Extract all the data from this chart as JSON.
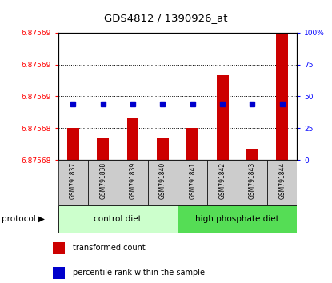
{
  "title": "GDS4812 / 1390926_at",
  "samples": [
    "GSM791837",
    "GSM791838",
    "GSM791839",
    "GSM791840",
    "GSM791841",
    "GSM791842",
    "GSM791843",
    "GSM791844"
  ],
  "transformed_counts": [
    6.875683,
    6.875682,
    6.875684,
    6.875682,
    6.875683,
    6.875688,
    6.875681,
    6.875692
  ],
  "percentile_ranks": [
    44,
    44,
    44,
    44,
    44,
    44,
    44,
    44
  ],
  "ymin": 6.87568,
  "ymax": 6.875692,
  "y2min": 0,
  "y2max": 100,
  "y2ticks": [
    0,
    25,
    50,
    75,
    100
  ],
  "y2tick_labels": [
    "0",
    "25",
    "50",
    "75",
    "100%"
  ],
  "bar_color": "#cc0000",
  "dot_color": "#0000cc",
  "group1_label": "control diet",
  "group2_label": "high phosphate diet",
  "group1_color": "#ccffcc",
  "group2_color": "#55dd55",
  "group1_count": 4,
  "group2_count": 4,
  "protocol_label": "protocol",
  "legend_bar_label": "transformed count",
  "legend_dot_label": "percentile rank within the sample",
  "sample_bg": "#cccccc"
}
